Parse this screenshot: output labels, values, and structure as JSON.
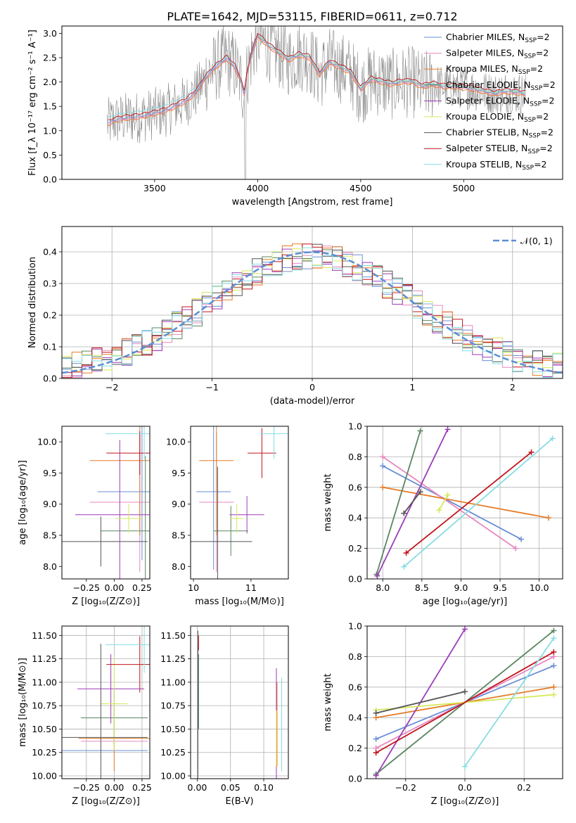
{
  "title": "PLATE=1642, MJD=53115, FIBERID=0611, z=0.712",
  "colors": {
    "Chabrier MILES": "#6a8ed6",
    "Salpeter MILES": "#e887c0",
    "Kroupa MILES": "#e57c28",
    "Chabrier ELODIE": "#5b8663",
    "Salpeter ELODIE": "#9b3cb8",
    "Kroupa ELODIE": "#d6e85a",
    "Chabrier STELIB": "#545454",
    "Salpeter STELIB": "#c0141c",
    "Kroupa STELIB": "#86dde2",
    "data": "#8a8a8a",
    "normal": "#5b8fd6"
  },
  "chart_data": [
    {
      "id": "spectrum",
      "type": "line",
      "xlabel": "wavelength [Angstrom, rest frame]",
      "ylabel": "Flux [f_λ 10⁻¹⁷ erg cm⁻² s⁻¹ A⁻¹]",
      "xlim": [
        3050,
        5480
      ],
      "ylim": [
        0,
        3.15
      ],
      "xticks": [
        3500,
        4000,
        4500,
        5000
      ],
      "yticks": [
        0.0,
        0.5,
        1.0,
        1.5,
        2.0,
        2.5,
        3.0
      ],
      "legend_position": "upper-right",
      "legend": [
        "Chabrier MILES, N_SSP=2",
        "Salpeter MILES, N_SSP=2",
        "Kroupa MILES, N_SSP=2",
        "Chabrier ELODIE, N_SSP=2",
        "Salpeter ELODIE, N_SSP=2",
        "Kroupa ELODIE, N_SSP=2",
        "Chabrier STELIB, N_SSP=2",
        "Salpeter STELIB, N_SSP=2",
        "Kroupa STELIB, N_SSP=2"
      ],
      "model_continuum": {
        "x": [
          3280,
          3300,
          3350,
          3400,
          3450,
          3500,
          3550,
          3600,
          3650,
          3700,
          3750,
          3800,
          3850,
          3890,
          3920,
          3935,
          3950,
          3970,
          4000,
          4050,
          4100,
          4150,
          4200,
          4250,
          4300,
          4350,
          4400,
          4450,
          4500,
          4550,
          4600,
          4650,
          4700,
          4750,
          4800,
          4850,
          4900,
          4950,
          5000,
          5050,
          5100,
          5150,
          5200,
          5250,
          5300
        ],
        "y": [
          1.15,
          1.2,
          1.25,
          1.27,
          1.3,
          1.35,
          1.4,
          1.5,
          1.6,
          1.78,
          2.1,
          2.32,
          2.48,
          2.3,
          2.0,
          1.75,
          2.2,
          2.55,
          2.95,
          2.75,
          2.6,
          2.45,
          2.55,
          2.5,
          2.15,
          2.4,
          2.3,
          2.2,
          1.85,
          2.05,
          2.0,
          1.95,
          2.0,
          2.0,
          1.9,
          1.95,
          1.9,
          1.9,
          1.88,
          1.85,
          1.8,
          1.75,
          1.8,
          1.78,
          1.75
        ]
      }
    },
    {
      "id": "residuals",
      "type": "histogram",
      "xlabel": "(data-model)/error",
      "ylabel": "Normed distribution",
      "xlim": [
        -2.5,
        2.5
      ],
      "ylim": [
        0,
        0.48
      ],
      "xticks": [
        -2,
        -1,
        0,
        1,
        2
      ],
      "yticks": [
        0.0,
        0.1,
        0.2,
        0.3,
        0.4
      ],
      "grid": true,
      "legend_position": "upper-right",
      "legend": [
        "𝒩(0, 1)"
      ],
      "reference": {
        "name": "𝒩(0, 1)",
        "mean": 0,
        "sigma": 1
      }
    },
    {
      "id": "age-vs-Z",
      "type": "errorbar",
      "xlabel": "Z [log₁₀(Z/Z⊙)]",
      "ylabel": "age  [log₁₀(age/yr)]",
      "xlim": [
        -0.47,
        0.32
      ],
      "ylim": [
        7.8,
        10.25
      ],
      "xticks": [
        -0.25,
        0.0,
        0.25
      ],
      "yticks": [
        8.0,
        8.5,
        9.0,
        9.5,
        10.0
      ],
      "points": [
        {
          "model": "Chabrier MILES",
          "x": 0.25,
          "xerr": 0.4,
          "y": 9.2,
          "yerr": 1.1
        },
        {
          "model": "Salpeter MILES",
          "x": 0.23,
          "xerr": 0.45,
          "y": 9.03,
          "yerr": 1.12
        },
        {
          "model": "Kroupa MILES",
          "x": 0.23,
          "xerr": 0.45,
          "y": 9.7,
          "yerr": 1.2
        },
        {
          "model": "Chabrier ELODIE",
          "x": 0.28,
          "xerr": 0.4,
          "y": 8.57,
          "yerr": 1.2
        },
        {
          "model": "Salpeter ELODIE",
          "x": 0.05,
          "xerr": 0.4,
          "y": 8.83,
          "yerr": 1.2
        },
        {
          "model": "Kroupa ELODIE",
          "x": 0.13,
          "xerr": 0.12,
          "y": 8.77,
          "yerr": 0.23
        },
        {
          "model": "Chabrier STELIB",
          "x": -0.12,
          "xerr": 0.42,
          "y": 8.4,
          "yerr": 0.4
        },
        {
          "model": "Salpeter STELIB",
          "x": 0.23,
          "xerr": 0.3,
          "y": 9.82,
          "yerr": 0.35
        },
        {
          "model": "Kroupa STELIB",
          "x": 0.27,
          "xerr": 0.35,
          "y": 10.13,
          "yerr": 0.4
        }
      ]
    },
    {
      "id": "age-vs-mass",
      "type": "errorbar",
      "xlabel": "mass [log₁₀(M/M⊙)]",
      "ylabel": "",
      "xlim": [
        9.95,
        11.65
      ],
      "ylim": [
        7.8,
        10.25
      ],
      "xticks": [
        10,
        11
      ],
      "yticks": [
        8.0,
        8.5,
        9.0,
        9.5,
        10.0
      ],
      "points": [
        {
          "model": "Chabrier MILES",
          "x": 10.35,
          "xerr": 0.3,
          "y": 9.2,
          "yerr": 1.25
        },
        {
          "model": "Salpeter MILES",
          "x": 10.4,
          "xerr": 0.3,
          "y": 9.03,
          "yerr": 1.12
        },
        {
          "model": "Kroupa MILES",
          "x": 10.4,
          "xerr": 0.3,
          "y": 9.7,
          "yerr": 1.2
        },
        {
          "model": "Chabrier ELODIE",
          "x": 10.65,
          "xerr": 0.3,
          "y": 8.57,
          "yerr": 0.4
        },
        {
          "model": "Salpeter ELODIE",
          "x": 10.93,
          "xerr": 0.3,
          "y": 8.83,
          "yerr": 0.3
        },
        {
          "model": "Kroupa ELODIE",
          "x": 10.75,
          "xerr": 0.12,
          "y": 8.77,
          "yerr": 0.23
        },
        {
          "model": "Chabrier STELIB",
          "x": 10.42,
          "xerr": 0.6,
          "y": 8.4,
          "yerr": 1.2
        },
        {
          "model": "Salpeter STELIB",
          "x": 11.19,
          "xerr": 0.25,
          "y": 9.82,
          "yerr": 0.4
        },
        {
          "model": "Kroupa STELIB",
          "x": 11.4,
          "xerr": 0.25,
          "y": 10.13,
          "yerr": 0.4
        }
      ]
    },
    {
      "id": "weight-vs-age",
      "type": "line",
      "xlabel": "age  [log₁₀(age/yr)]",
      "ylabel": "mass weight",
      "xlim": [
        7.8,
        10.3
      ],
      "ylim": [
        0,
        1
      ],
      "xticks": [
        8.0,
        8.5,
        9.0,
        9.5,
        10.0
      ],
      "yticks": [
        0.0,
        0.2,
        0.4,
        0.6,
        0.8,
        1.0
      ],
      "grid": true,
      "series": [
        {
          "model": "Chabrier MILES",
          "x": [
            8.0,
            9.77
          ],
          "y": [
            0.74,
            0.26
          ]
        },
        {
          "model": "Salpeter MILES",
          "x": [
            8.0,
            9.7
          ],
          "y": [
            0.8,
            0.2
          ]
        },
        {
          "model": "Kroupa MILES",
          "x": [
            8.0,
            10.12
          ],
          "y": [
            0.6,
            0.4
          ]
        },
        {
          "model": "Chabrier ELODIE",
          "x": [
            7.92,
            8.48
          ],
          "y": [
            0.03,
            0.97
          ]
        },
        {
          "model": "Salpeter ELODIE",
          "x": [
            7.93,
            8.83
          ],
          "y": [
            0.02,
            0.98
          ]
        },
        {
          "model": "Kroupa ELODIE",
          "x": [
            8.72,
            8.83
          ],
          "y": [
            0.45,
            0.55
          ]
        },
        {
          "model": "Chabrier STELIB",
          "x": [
            8.27,
            8.48
          ],
          "y": [
            0.43,
            0.57
          ]
        },
        {
          "model": "Salpeter STELIB",
          "x": [
            8.3,
            9.9
          ],
          "y": [
            0.17,
            0.83
          ]
        },
        {
          "model": "Kroupa STELIB",
          "x": [
            8.27,
            10.17
          ],
          "y": [
            0.08,
            0.92
          ]
        }
      ]
    },
    {
      "id": "mass-vs-Z",
      "type": "errorbar",
      "xlabel": "Z [log₁₀(Z/Z⊙)]",
      "ylabel": "mass [log₁₀(M/M⊙)]",
      "xlim": [
        -0.47,
        0.32
      ],
      "ylim": [
        9.97,
        11.6
      ],
      "xticks": [
        -0.25,
        0.0,
        0.25
      ],
      "yticks": [
        10.0,
        10.25,
        10.5,
        10.75,
        11.0,
        11.25,
        11.5
      ],
      "grid": true,
      "points": [
        {
          "model": "Chabrier MILES",
          "x": -0.1,
          "xerr": 0.4,
          "y": 10.27,
          "yerr": 0.0
        },
        {
          "model": "Salpeter MILES",
          "x": 0.0,
          "xerr": 0.3,
          "y": 10.37,
          "yerr": 0.0
        },
        {
          "model": "Kroupa MILES",
          "x": 0.0,
          "xerr": 0.32,
          "y": 10.4,
          "yerr": 0.35
        },
        {
          "model": "Chabrier ELODIE",
          "x": 0.0,
          "xerr": 0.3,
          "y": 10.62,
          "yerr": 0.3
        },
        {
          "model": "Salpeter ELODIE",
          "x": -0.03,
          "xerr": 0.3,
          "y": 10.93,
          "yerr": 0.37
        },
        {
          "model": "Kroupa ELODIE",
          "x": 0.0,
          "xerr": 0.12,
          "y": 10.77,
          "yerr": 0.5
        },
        {
          "model": "Chabrier STELIB",
          "x": -0.12,
          "xerr": 0.42,
          "y": 10.41,
          "yerr": 1.0
        },
        {
          "model": "Salpeter STELIB",
          "x": 0.23,
          "xerr": 0.3,
          "y": 11.19,
          "yerr": 0.3
        },
        {
          "model": "Kroupa STELIB",
          "x": 0.27,
          "xerr": 0.35,
          "y": 11.4,
          "yerr": 0.3
        }
      ]
    },
    {
      "id": "mass-vs-EBV",
      "type": "errorbar",
      "xlabel": "E(B-V)",
      "ylabel": "",
      "xlim": [
        -0.01,
        0.137
      ],
      "ylim": [
        9.97,
        11.6
      ],
      "xticks": [
        0.0,
        0.05,
        0.1
      ],
      "yticks": [
        10.0,
        10.25,
        10.5,
        10.75,
        11.0,
        11.25,
        11.5
      ],
      "grid": true,
      "points": [
        {
          "model": "Chabrier MILES",
          "x": 0.001,
          "y": 10.7,
          "yerr": 0.7
        },
        {
          "model": "Salpeter MILES",
          "x": 0.002,
          "y": 10.9,
          "yerr": 0.4
        },
        {
          "model": "Kroupa MILES",
          "x": 0.12,
          "y": 10.55,
          "yerr": 0.45
        },
        {
          "model": "Chabrier ELODIE",
          "x": 0.002,
          "y": 10.9,
          "yerr": 0.4
        },
        {
          "model": "Salpeter ELODIE",
          "x": 0.119,
          "y": 10.55,
          "yerr": 0.6
        },
        {
          "model": "Kroupa ELODIE",
          "x": 0.119,
          "y": 10.4,
          "yerr": 0.3
        },
        {
          "model": "Chabrier STELIB",
          "x": 0.001,
          "y": 10.6,
          "yerr": 0.95
        },
        {
          "model": "Salpeter STELIB",
          "x": 0.002,
          "y": 11.42,
          "yerr": 0.08
        },
        {
          "model": "Kroupa STELIB",
          "x": 0.127,
          "y": 10.55,
          "yerr": 0.5
        }
      ]
    },
    {
      "id": "weight-vs-Z",
      "type": "line",
      "xlabel": "Z [log₁₀(Z/Z⊙)]",
      "ylabel": "mass weight",
      "xlim": [
        -0.33,
        0.33
      ],
      "ylim": [
        0,
        1
      ],
      "xticks": [
        -0.2,
        0.0,
        0.2
      ],
      "yticks": [
        0.0,
        0.2,
        0.4,
        0.6,
        0.8,
        1.0
      ],
      "grid": true,
      "series": [
        {
          "model": "Chabrier MILES",
          "x": [
            -0.3,
            0.3
          ],
          "y": [
            0.26,
            0.74
          ]
        },
        {
          "model": "Salpeter MILES",
          "x": [
            -0.3,
            0.3
          ],
          "y": [
            0.2,
            0.8
          ]
        },
        {
          "model": "Kroupa MILES",
          "x": [
            -0.3,
            0.3
          ],
          "y": [
            0.4,
            0.6
          ]
        },
        {
          "model": "Chabrier ELODIE",
          "x": [
            -0.3,
            0.3
          ],
          "y": [
            0.03,
            0.97
          ]
        },
        {
          "model": "Salpeter ELODIE",
          "x": [
            -0.3,
            0.0
          ],
          "y": [
            0.02,
            0.98
          ]
        },
        {
          "model": "Kroupa ELODIE",
          "x": [
            -0.3,
            0.3
          ],
          "y": [
            0.45,
            0.55
          ]
        },
        {
          "model": "Chabrier STELIB",
          "x": [
            -0.3,
            0.0
          ],
          "y": [
            0.43,
            0.57
          ]
        },
        {
          "model": "Salpeter STELIB",
          "x": [
            -0.3,
            0.3
          ],
          "y": [
            0.17,
            0.83
          ]
        },
        {
          "model": "Kroupa STELIB",
          "x": [
            0.0,
            0.3
          ],
          "y": [
            0.08,
            0.92
          ]
        }
      ]
    }
  ]
}
